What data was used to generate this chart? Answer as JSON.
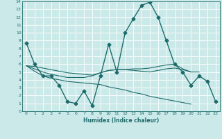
{
  "xlabel": "Humidex (Indice chaleur)",
  "xlim": [
    -0.5,
    23.5
  ],
  "ylim": [
    0,
    14
  ],
  "yticks": [
    0,
    1,
    2,
    3,
    4,
    5,
    6,
    7,
    8,
    9,
    10,
    11,
    12,
    13,
    14
  ],
  "xticks": [
    0,
    1,
    2,
    3,
    4,
    5,
    6,
    7,
    8,
    9,
    10,
    11,
    12,
    13,
    14,
    15,
    16,
    17,
    18,
    19,
    20,
    21,
    22,
    23
  ],
  "bg_color": "#cce9ea",
  "line_color": "#1e6b6b",
  "grid_color": "#ffffff",
  "series": [
    {
      "x": [
        0,
        1,
        2,
        3,
        4,
        5,
        6,
        7,
        8,
        9,
        10,
        11,
        12,
        13,
        14,
        15,
        16,
        17,
        18,
        19,
        20,
        21,
        22,
        23
      ],
      "y": [
        8.7,
        6.0,
        4.5,
        4.5,
        3.3,
        1.2,
        1.0,
        2.6,
        0.7,
        4.5,
        8.5,
        5.0,
        10.0,
        11.8,
        13.5,
        13.9,
        12.0,
        9.0,
        6.0,
        5.0,
        3.3,
        4.5,
        3.8,
        1.2
      ],
      "marker": "D",
      "markersize": 2.5,
      "linewidth": 1.0
    },
    {
      "x": [
        0,
        1,
        2,
        3,
        4,
        5,
        6,
        7,
        8,
        9,
        10,
        11,
        12,
        13,
        14,
        15,
        16,
        17,
        18,
        19,
        20,
        21,
        22,
        23
      ],
      "y": [
        5.8,
        5.7,
        5.5,
        5.3,
        5.1,
        4.9,
        4.8,
        4.7,
        4.6,
        4.9,
        5.2,
        5.3,
        5.3,
        5.4,
        5.4,
        5.5,
        5.7,
        5.9,
        6.0,
        5.4,
        5.0,
        5.0,
        null,
        null
      ],
      "marker": null,
      "linewidth": 0.8
    },
    {
      "x": [
        0,
        1,
        2,
        3,
        4,
        5,
        6,
        7,
        8,
        9,
        10,
        11,
        12,
        13,
        14,
        15,
        16,
        17,
        18,
        19,
        20,
        21,
        22,
        23
      ],
      "y": [
        5.8,
        5.4,
        5.0,
        4.7,
        4.5,
        4.3,
        4.3,
        4.3,
        4.5,
        4.9,
        5.2,
        5.3,
        5.3,
        5.2,
        5.1,
        5.0,
        5.2,
        5.4,
        5.5,
        5.3,
        5.0,
        null,
        null,
        null
      ],
      "marker": null,
      "linewidth": 0.8
    },
    {
      "x": [
        0,
        1,
        2,
        3,
        4,
        5,
        6,
        7,
        8,
        9,
        10,
        11,
        12,
        13,
        14,
        15,
        16,
        17,
        18,
        19,
        20,
        21,
        22,
        23
      ],
      "y": [
        5.8,
        5.1,
        4.5,
        4.2,
        4.0,
        3.8,
        3.7,
        3.6,
        3.5,
        3.4,
        3.1,
        2.9,
        2.7,
        2.4,
        2.2,
        1.9,
        1.7,
        1.5,
        1.3,
        1.1,
        0.9,
        null,
        null,
        null
      ],
      "marker": null,
      "linewidth": 0.8
    }
  ]
}
